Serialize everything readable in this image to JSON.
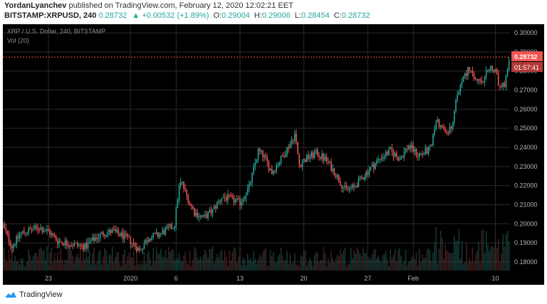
{
  "header": {
    "author": "YordanLyanchev",
    "published_text": "published on TradingView.com, February 12, 2020 12:02:21 EET",
    "symbol": "BITSTAMP:XRPUSD, 240",
    "last": "0.28732",
    "change": "+0.00532 (+1.89%)",
    "o_label": "O:",
    "o_value": "0.29004",
    "h_label": "H:",
    "h_value": "0.29006",
    "l_label": "L:",
    "l_value": "0.28454",
    "c_label": "C:",
    "c_value": "0.28732"
  },
  "chart_data": {
    "type": "candlestick",
    "title": "XRP / U.S. Dollar, 240, BITSTAMP",
    "volume_label": "Vol (20)",
    "ylim": [
      0.1755,
      0.3045
    ],
    "y_ticks": [
      "0.30000",
      "0.29000",
      "0.28000",
      "0.27000",
      "0.26000",
      "0.25000",
      "0.24000",
      "0.23000",
      "0.22000",
      "0.21000",
      "0.20000",
      "0.19000",
      "0.18000"
    ],
    "x_ticks": [
      {
        "label": "23",
        "day": 23
      },
      {
        "label": "2020",
        "day": 32
      },
      {
        "label": "6",
        "day": 37
      },
      {
        "label": "13",
        "day": 44
      },
      {
        "label": "20",
        "day": 51
      },
      {
        "label": "27",
        "day": 58
      },
      {
        "label": "Feb",
        "day": 63
      },
      {
        "label": "10",
        "day": 72
      }
    ],
    "x_range_days": [
      18.0,
      73.6
    ],
    "price_path": [
      [
        18.0,
        0.199
      ],
      [
        19.0,
        0.188
      ],
      [
        20.0,
        0.195
      ],
      [
        22.0,
        0.198
      ],
      [
        23.0,
        0.196
      ],
      [
        24.0,
        0.191
      ],
      [
        25.0,
        0.19
      ],
      [
        26.0,
        0.189
      ],
      [
        27.0,
        0.188
      ],
      [
        28.0,
        0.192
      ],
      [
        29.0,
        0.195
      ],
      [
        30.0,
        0.196
      ],
      [
        31.0,
        0.194
      ],
      [
        32.0,
        0.191
      ],
      [
        33.0,
        0.186
      ],
      [
        34.0,
        0.193
      ],
      [
        35.0,
        0.194
      ],
      [
        36.0,
        0.197
      ],
      [
        36.8,
        0.199
      ],
      [
        37.3,
        0.219
      ],
      [
        37.6,
        0.222
      ],
      [
        38.2,
        0.214
      ],
      [
        39.0,
        0.206
      ],
      [
        40.0,
        0.203
      ],
      [
        41.0,
        0.207
      ],
      [
        42.0,
        0.214
      ],
      [
        43.0,
        0.213
      ],
      [
        44.0,
        0.211
      ],
      [
        45.0,
        0.219
      ],
      [
        46.0,
        0.238
      ],
      [
        46.5,
        0.236
      ],
      [
        47.5,
        0.227
      ],
      [
        48.5,
        0.234
      ],
      [
        49.5,
        0.242
      ],
      [
        50.0,
        0.247
      ],
      [
        50.5,
        0.231
      ],
      [
        51.5,
        0.235
      ],
      [
        52.5,
        0.237
      ],
      [
        53.5,
        0.233
      ],
      [
        54.5,
        0.226
      ],
      [
        55.5,
        0.218
      ],
      [
        56.5,
        0.219
      ],
      [
        57.5,
        0.225
      ],
      [
        58.5,
        0.23
      ],
      [
        59.5,
        0.235
      ],
      [
        60.5,
        0.238
      ],
      [
        61.5,
        0.234
      ],
      [
        62.5,
        0.241
      ],
      [
        63.5,
        0.236
      ],
      [
        64.5,
        0.238
      ],
      [
        65.0,
        0.24
      ],
      [
        65.5,
        0.255
      ],
      [
        66.0,
        0.251
      ],
      [
        66.5,
        0.248
      ],
      [
        67.3,
        0.25
      ],
      [
        67.8,
        0.268
      ],
      [
        68.5,
        0.276
      ],
      [
        69.0,
        0.281
      ],
      [
        69.5,
        0.277
      ],
      [
        70.0,
        0.275
      ],
      [
        70.5,
        0.273
      ],
      [
        71.0,
        0.278
      ],
      [
        71.5,
        0.282
      ],
      [
        72.0,
        0.279
      ],
      [
        72.5,
        0.271
      ],
      [
        73.0,
        0.272
      ],
      [
        73.2,
        0.278
      ],
      [
        73.6,
        0.287
      ]
    ],
    "last_price": 0.28732,
    "last_price_label": "0.28732",
    "countdown_label": "01:57:41",
    "colors": {
      "background": "#000000",
      "up": "#26a69a",
      "down": "#ef5350",
      "grid": "#2a2a2a",
      "axis_text": "#b2b5be",
      "price_line": "#ef5350"
    }
  },
  "footer": {
    "brand": "TradingView",
    "logo_icon": "tradingview-cloud-icon"
  }
}
